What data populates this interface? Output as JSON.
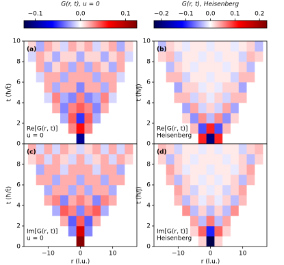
{
  "chart_data": [
    {
      "type": "heatmap",
      "panel_label": "(a)",
      "annotation": [
        "Re[G(r, t)]",
        "u = 0"
      ],
      "ylabel": "t (ħ/t̃)",
      "colorbar_label": "G(r, t), u = 0",
      "zticks": [
        {
          "value": -0.1,
          "label": "−0.1"
        },
        {
          "value": 0,
          "label": "0.0"
        },
        0.1
      ],
      "colormap": [
        "#00004c",
        "#0000ff",
        "#ffffff",
        "#ff0000",
        "#7f0000"
      ],
      "zlim": [
        -0.125,
        0.125
      ],
      "xlim": [
        -17.5,
        17.5
      ],
      "ylim": [
        0,
        10
      ],
      "yticks": [
        0,
        2,
        4,
        6,
        8,
        10
      ],
      "x": [
        -15,
        -12.5,
        -10,
        -7.5,
        -5,
        -2.5,
        0,
        2.5,
        5,
        7.5,
        10,
        12.5,
        15
      ],
      "y": [
        0.5,
        1.5,
        2.5,
        3.5,
        4.5,
        5.5,
        6.5,
        7.5,
        8.5,
        9.5
      ],
      "z": [
        [
          0,
          0,
          0,
          0,
          0,
          0,
          -0.1,
          0,
          0,
          0,
          0,
          0,
          0
        ],
        [
          0,
          0,
          0,
          0,
          0,
          0.03,
          0.06,
          0.03,
          0,
          0,
          0,
          0,
          0
        ],
        [
          0,
          0,
          0,
          0,
          -0.02,
          0.04,
          -0.05,
          0.04,
          -0.02,
          0,
          0,
          0,
          0
        ],
        [
          0,
          0,
          0,
          0.02,
          -0.03,
          0.03,
          0.04,
          0.03,
          -0.03,
          0.02,
          0,
          0,
          0
        ],
        [
          0,
          0,
          -0.01,
          0.03,
          -0.02,
          -0.03,
          0.03,
          -0.03,
          -0.02,
          0.03,
          -0.01,
          0,
          0
        ],
        [
          0,
          0,
          0.02,
          -0.02,
          0.02,
          0.02,
          -0.03,
          0.02,
          0.02,
          -0.02,
          0.02,
          0,
          0
        ],
        [
          0,
          -0.01,
          0.02,
          0.02,
          -0.02,
          0.02,
          0.02,
          0.02,
          -0.02,
          0.02,
          0.02,
          -0.01,
          0
        ],
        [
          0,
          0.02,
          -0.02,
          0.01,
          0.02,
          -0.02,
          0.02,
          -0.02,
          0.02,
          0.01,
          -0.02,
          0.02,
          0
        ],
        [
          -0.01,
          0.02,
          0.01,
          -0.02,
          0.01,
          0.01,
          -0.02,
          0.01,
          0.01,
          -0.02,
          0.01,
          0.02,
          -0.01
        ],
        [
          0.01,
          -0.02,
          0.02,
          0.01,
          -0.01,
          0.02,
          0.01,
          0.02,
          -0.01,
          0.01,
          0.02,
          -0.02,
          0.01
        ]
      ]
    },
    {
      "type": "heatmap",
      "panel_label": "(b)",
      "annotation": [
        "Re[G(r, t)]",
        "Heisenberg"
      ],
      "ylabel": "t (ħ/J)",
      "colorbar_label": "G(r, t), Heisenberg",
      "zticks": [
        {
          "value": -0.2,
          "label": "−0.2"
        },
        {
          "value": -0.1,
          "label": "−0.1"
        },
        {
          "value": 0,
          "label": "0.0"
        },
        0.1,
        0.2
      ],
      "colormap": [
        "#00004c",
        "#0000ff",
        "#ffffff",
        "#ff0000",
        "#7f0000"
      ],
      "zlim": [
        -0.23,
        0.23
      ],
      "xlim": [
        -17.5,
        17.5
      ],
      "ylim": [
        0,
        10
      ],
      "yticks": [
        0,
        2,
        4,
        6,
        8,
        10
      ],
      "x": [
        -15,
        -12.5,
        -10,
        -7.5,
        -5,
        -2.5,
        0,
        2.5,
        5,
        7.5,
        10,
        12.5,
        15
      ],
      "y": [
        0.5,
        1.5,
        2.5,
        3.5,
        4.5,
        5.5,
        6.5,
        7.5,
        8.5,
        9.5
      ],
      "z": [
        [
          0,
          0,
          0,
          0,
          0,
          0.1,
          -0.2,
          0.1,
          0,
          0,
          0,
          0,
          0
        ],
        [
          0,
          0,
          0,
          0,
          0.03,
          -0.08,
          0.1,
          -0.08,
          0.03,
          0,
          0,
          0,
          0
        ],
        [
          0,
          0,
          0,
          0.02,
          -0.05,
          0.05,
          -0.03,
          0.05,
          -0.05,
          0.02,
          0,
          0,
          0
        ],
        [
          0,
          0,
          0,
          -0.04,
          0.04,
          -0.02,
          0.02,
          -0.02,
          0.04,
          -0.04,
          0,
          0,
          0
        ],
        [
          0,
          0,
          0.03,
          0.03,
          -0.02,
          0.02,
          -0.01,
          0.02,
          -0.02,
          0.03,
          0.03,
          0,
          0
        ],
        [
          0,
          0,
          -0.04,
          0.02,
          0.02,
          -0.01,
          0.01,
          -0.01,
          0.02,
          0.02,
          -0.04,
          0,
          0
        ],
        [
          0,
          0.03,
          0.03,
          -0.02,
          0.01,
          0.01,
          -0.01,
          0.01,
          0.01,
          -0.02,
          0.03,
          0.03,
          0
        ],
        [
          0,
          -0.03,
          0.02,
          0.01,
          -0.01,
          0.01,
          0.01,
          0.01,
          -0.01,
          0.01,
          0.02,
          -0.03,
          0
        ],
        [
          0.02,
          0.03,
          -0.02,
          0.01,
          0.01,
          -0.01,
          0.01,
          -0.01,
          0.01,
          0.01,
          -0.02,
          0.03,
          0.02
        ],
        [
          -0.03,
          0.02,
          0.01,
          -0.01,
          0.01,
          0.01,
          -0.01,
          0.01,
          0.01,
          -0.01,
          0.01,
          0.02,
          -0.03
        ]
      ]
    },
    {
      "type": "heatmap",
      "panel_label": "(c)",
      "annotation": [
        "Im[G(r, t)]",
        "u = 0"
      ],
      "ylabel": "t (ħ/t̃)",
      "colormap": [
        "#00004c",
        "#0000ff",
        "#ffffff",
        "#ff0000",
        "#7f0000"
      ],
      "zlim": [
        -0.125,
        0.125
      ],
      "xlim": [
        -17.5,
        17.5
      ],
      "ylim": [
        0,
        10
      ],
      "yticks": [
        0,
        2,
        4,
        6,
        8
      ],
      "xticks": [
        {
          "value": -10,
          "label": "−10"
        },
        0,
        10
      ],
      "xlabel": "r (l.u.)",
      "x": [
        -15,
        -12.5,
        -10,
        -7.5,
        -5,
        -2.5,
        0,
        2.5,
        5,
        7.5,
        10,
        12.5,
        15
      ],
      "y": [
        0.5,
        1.5,
        2.5,
        3.5,
        4.5,
        5.5,
        6.5,
        7.5,
        8.5,
        9.5
      ],
      "z": [
        [
          0,
          0,
          0,
          0,
          0,
          0,
          0.12,
          0,
          0,
          0,
          0,
          0,
          0
        ],
        [
          0,
          0,
          0,
          0,
          0,
          -0.03,
          0.08,
          -0.03,
          0,
          0,
          0,
          0,
          0
        ],
        [
          0,
          0,
          0,
          0,
          0.02,
          -0.04,
          0.04,
          -0.04,
          0.02,
          0,
          0,
          0,
          0
        ],
        [
          0,
          0,
          0,
          -0.02,
          0.04,
          0.03,
          -0.03,
          0.03,
          0.04,
          -0.02,
          0,
          0,
          0
        ],
        [
          0,
          0,
          0.02,
          0.03,
          -0.03,
          0.02,
          0.03,
          0.02,
          -0.03,
          0.03,
          0.02,
          0,
          0
        ],
        [
          0,
          0,
          -0.02,
          0.02,
          0.02,
          -0.02,
          0.02,
          -0.02,
          0.02,
          0.02,
          -0.02,
          0,
          0
        ],
        [
          0,
          0.02,
          0.02,
          -0.02,
          0.02,
          0.02,
          -0.02,
          0.02,
          0.02,
          -0.02,
          0.02,
          0.02,
          0
        ],
        [
          0,
          -0.02,
          0.02,
          0.02,
          -0.01,
          0.02,
          0.02,
          0.02,
          -0.01,
          0.02,
          0.02,
          -0.02,
          0
        ],
        [
          0.01,
          0.02,
          -0.01,
          0.02,
          0.01,
          -0.01,
          0.02,
          -0.01,
          0.01,
          0.02,
          -0.01,
          0.02,
          0.01
        ],
        [
          0.02,
          -0.01,
          0.02,
          -0.01,
          0.02,
          0.01,
          -0.01,
          0.01,
          0.02,
          -0.01,
          0.02,
          -0.01,
          0.02
        ]
      ]
    },
    {
      "type": "heatmap",
      "panel_label": "(d)",
      "annotation": [
        "Im[G(r, t)]",
        "Heisenberg"
      ],
      "ylabel": "t (ħ/J)",
      "colormap": [
        "#00004c",
        "#0000ff",
        "#ffffff",
        "#ff0000",
        "#7f0000"
      ],
      "zlim": [
        -0.23,
        0.23
      ],
      "xlim": [
        -17.5,
        17.5
      ],
      "ylim": [
        0,
        10
      ],
      "yticks": [
        0,
        2,
        4,
        6,
        8
      ],
      "xticks": [
        {
          "value": -10,
          "label": "−10"
        },
        0,
        10
      ],
      "xlabel": "r (l.u.)",
      "x": [
        -15,
        -12.5,
        -10,
        -7.5,
        -5,
        -2.5,
        0,
        2.5,
        5,
        7.5,
        10,
        12.5,
        15
      ],
      "y": [
        0.5,
        1.5,
        2.5,
        3.5,
        4.5,
        5.5,
        6.5,
        7.5,
        8.5,
        9.5
      ],
      "z": [
        [
          0,
          0,
          0,
          0,
          0,
          0.02,
          -0.25,
          0.02,
          0,
          0,
          0,
          0,
          0
        ],
        [
          0,
          0,
          0,
          0,
          0.02,
          0.07,
          -0.1,
          0.07,
          0.02,
          0,
          0,
          0,
          0
        ],
        [
          0,
          0,
          0,
          0,
          0.04,
          -0.03,
          0.06,
          -0.03,
          0.04,
          0,
          0,
          0,
          0
        ],
        [
          0,
          0,
          0,
          0.05,
          -0.03,
          0.02,
          -0.03,
          0.02,
          -0.03,
          0.05,
          0,
          0,
          0
        ],
        [
          0,
          0,
          0.03,
          -0.03,
          0.02,
          -0.01,
          0.02,
          -0.01,
          0.02,
          -0.03,
          0.03,
          0,
          0
        ],
        [
          0,
          0,
          0.04,
          0.02,
          -0.02,
          0.01,
          -0.01,
          0.01,
          -0.02,
          0.02,
          0.04,
          0,
          0
        ],
        [
          0,
          0.03,
          -0.03,
          0.02,
          0.01,
          -0.01,
          0.01,
          -0.01,
          0.01,
          0.02,
          -0.03,
          0.03,
          0
        ],
        [
          0,
          0.04,
          0.02,
          -0.01,
          0.01,
          0.01,
          -0.01,
          0.01,
          0.01,
          -0.01,
          0.02,
          0.04,
          0
        ],
        [
          0.02,
          -0.03,
          0.02,
          0.01,
          -0.01,
          0.01,
          0.01,
          0.01,
          -0.01,
          0.01,
          0.02,
          -0.03,
          0.02
        ],
        [
          0.03,
          0.02,
          -0.02,
          0.01,
          0.01,
          -0.01,
          0.01,
          -0.01,
          0.01,
          0.01,
          -0.02,
          0.02,
          0.03
        ]
      ]
    }
  ]
}
